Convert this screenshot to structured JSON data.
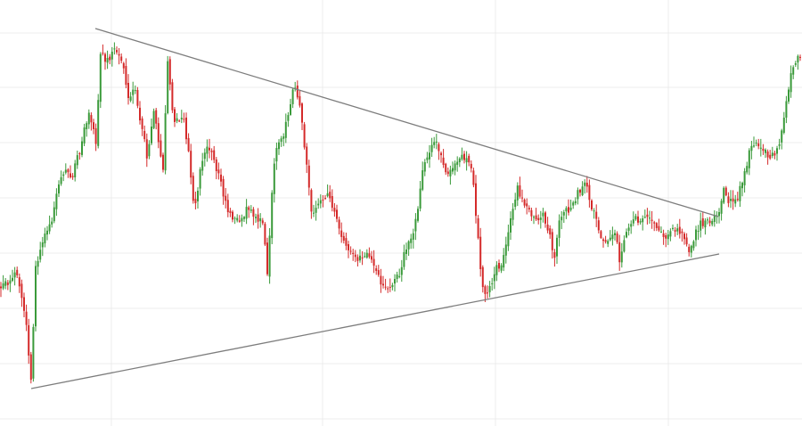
{
  "chart_data": {
    "type": "candlestick",
    "title": "",
    "xlabel": "",
    "ylabel": "",
    "grid": true,
    "legend": "none",
    "colors": {
      "up": "#3a9a3a",
      "down": "#d42a2a",
      "trendline": "#7d7d7d",
      "grid": "#ececec"
    },
    "ylim": [
      0,
      478
    ],
    "vertical_gridlines_x": [
      125,
      362,
      556,
      750
    ],
    "horizontal_gridlines_y": [
      37,
      98,
      160,
      222,
      284,
      346,
      408,
      470
    ],
    "close_path": [
      [
        0,
        322
      ],
      [
        10,
        318
      ],
      [
        18,
        305
      ],
      [
        25,
        340
      ],
      [
        30,
        370
      ],
      [
        35,
        432
      ],
      [
        40,
        300
      ],
      [
        48,
        268
      ],
      [
        58,
        250
      ],
      [
        65,
        210
      ],
      [
        72,
        192
      ],
      [
        80,
        200
      ],
      [
        88,
        175
      ],
      [
        95,
        140
      ],
      [
        100,
        128
      ],
      [
        108,
        160
      ],
      [
        113,
        55
      ],
      [
        118,
        70
      ],
      [
        125,
        60
      ],
      [
        132,
        55
      ],
      [
        140,
        85
      ],
      [
        145,
        110
      ],
      [
        152,
        100
      ],
      [
        158,
        140
      ],
      [
        165,
        175
      ],
      [
        172,
        125
      ],
      [
        178,
        160
      ],
      [
        183,
        195
      ],
      [
        188,
        65
      ],
      [
        195,
        140
      ],
      [
        205,
        128
      ],
      [
        212,
        175
      ],
      [
        218,
        235
      ],
      [
        225,
        190
      ],
      [
        232,
        160
      ],
      [
        240,
        178
      ],
      [
        248,
        205
      ],
      [
        255,
        235
      ],
      [
        262,
        250
      ],
      [
        270,
        245
      ],
      [
        278,
        235
      ],
      [
        286,
        245
      ],
      [
        295,
        250
      ],
      [
        300,
        305
      ],
      [
        306,
        200
      ],
      [
        312,
        160
      ],
      [
        318,
        150
      ],
      [
        325,
        120
      ],
      [
        330,
        90
      ],
      [
        335,
        110
      ],
      [
        340,
        150
      ],
      [
        345,
        195
      ],
      [
        350,
        240
      ],
      [
        356,
        225
      ],
      [
        362,
        220
      ],
      [
        370,
        220
      ],
      [
        378,
        250
      ],
      [
        385,
        270
      ],
      [
        392,
        285
      ],
      [
        400,
        290
      ],
      [
        408,
        290
      ],
      [
        415,
        285
      ],
      [
        422,
        300
      ],
      [
        428,
        325
      ],
      [
        434,
        325
      ],
      [
        440,
        320
      ],
      [
        448,
        310
      ],
      [
        455,
        280
      ],
      [
        462,
        270
      ],
      [
        468,
        240
      ],
      [
        474,
        190
      ],
      [
        480,
        175
      ],
      [
        488,
        160
      ],
      [
        495,
        175
      ],
      [
        502,
        195
      ],
      [
        510,
        180
      ],
      [
        518,
        175
      ],
      [
        525,
        178
      ],
      [
        530,
        190
      ],
      [
        535,
        250
      ],
      [
        540,
        315
      ],
      [
        545,
        330
      ],
      [
        552,
        320
      ],
      [
        558,
        300
      ],
      [
        565,
        290
      ],
      [
        570,
        260
      ],
      [
        575,
        235
      ],
      [
        580,
        210
      ],
      [
        588,
        230
      ],
      [
        595,
        240
      ],
      [
        602,
        245
      ],
      [
        610,
        240
      ],
      [
        618,
        265
      ],
      [
        622,
        290
      ],
      [
        628,
        245
      ],
      [
        635,
        238
      ],
      [
        642,
        230
      ],
      [
        650,
        215
      ],
      [
        656,
        205
      ],
      [
        662,
        225
      ],
      [
        668,
        245
      ],
      [
        675,
        265
      ],
      [
        682,
        270
      ],
      [
        690,
        260
      ],
      [
        696,
        295
      ],
      [
        702,
        265
      ],
      [
        710,
        245
      ],
      [
        718,
        250
      ],
      [
        725,
        240
      ],
      [
        732,
        250
      ],
      [
        740,
        255
      ],
      [
        746,
        270
      ],
      [
        752,
        260
      ],
      [
        760,
        258
      ],
      [
        768,
        265
      ],
      [
        774,
        283
      ],
      [
        780,
        265
      ],
      [
        786,
        248
      ],
      [
        792,
        250
      ],
      [
        800,
        245
      ],
      [
        806,
        238
      ],
      [
        812,
        210
      ],
      [
        818,
        225
      ],
      [
        824,
        232
      ],
      [
        830,
        215
      ],
      [
        836,
        195
      ],
      [
        842,
        165
      ],
      [
        848,
        160
      ],
      [
        855,
        165
      ],
      [
        862,
        175
      ],
      [
        868,
        175
      ],
      [
        875,
        160
      ],
      [
        880,
        130
      ],
      [
        885,
        100
      ],
      [
        890,
        75
      ],
      [
        895,
        60
      ],
      [
        899,
        70
      ]
    ],
    "trendlines": [
      {
        "name": "upper",
        "from": [
          107,
          32
        ],
        "to": [
          806,
          243
        ]
      },
      {
        "name": "lower",
        "from": [
          35,
          436
        ],
        "to": [
          807,
          285
        ]
      }
    ]
  }
}
